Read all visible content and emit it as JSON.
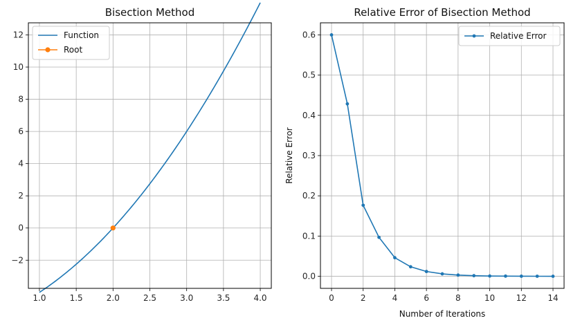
{
  "chart_data": [
    {
      "type": "line",
      "title": "Bisection Method",
      "xlabel": "",
      "ylabel": "",
      "xlim": [
        0.85,
        4.15
      ],
      "ylim": [
        -3.75,
        12.75
      ],
      "xticks": [
        1.0,
        1.5,
        2.0,
        2.5,
        3.0,
        3.5,
        4.0
      ],
      "xtick_labels": [
        "1.0",
        "1.5",
        "2.0",
        "2.5",
        "3.0",
        "3.5",
        "4.0"
      ],
      "yticks": [
        -2,
        0,
        2,
        4,
        6,
        8,
        10,
        12
      ],
      "ytick_labels": [
        "−2",
        "0",
        "2",
        "4",
        "6",
        "8",
        "10",
        "12"
      ],
      "grid": true,
      "legend": "top-left",
      "series": [
        {
          "name": "Function",
          "color": "#1f77b4",
          "function": "x^2 + x - 6",
          "x_range": [
            1.0,
            4.0
          ]
        },
        {
          "name": "Root",
          "color": "#ff7f0e",
          "marker": "circle",
          "x": [
            2.0
          ],
          "y": [
            0.0
          ]
        }
      ]
    },
    {
      "type": "line",
      "title": "Relative Error of Bisection Method",
      "xlabel": "Number of Iterations",
      "ylabel": "Relative Error",
      "xlim": [
        -0.7,
        14.7
      ],
      "ylim": [
        -0.03,
        0.63
      ],
      "xticks": [
        0,
        2,
        4,
        6,
        8,
        10,
        12,
        14
      ],
      "xtick_labels": [
        "0",
        "2",
        "4",
        "6",
        "8",
        "10",
        "12",
        "14"
      ],
      "yticks": [
        0.0,
        0.1,
        0.2,
        0.3,
        0.4,
        0.5,
        0.6
      ],
      "ytick_labels": [
        "0.0",
        "0.1",
        "0.2",
        "0.3",
        "0.4",
        "0.5",
        "0.6"
      ],
      "grid": true,
      "legend": "top-right",
      "series": [
        {
          "name": "Relative Error",
          "color": "#1f77b4",
          "marker": "circle",
          "x": [
            0,
            1,
            2,
            3,
            4,
            5,
            6,
            7,
            8,
            9,
            10,
            11,
            12,
            13,
            14
          ],
          "y": [
            0.6,
            0.4286,
            0.1765,
            0.0968,
            0.0462,
            0.0236,
            0.0119,
            0.006,
            0.003,
            0.0015,
            0.0007,
            0.0004,
            0.0002,
            0.0001,
            5e-05
          ]
        }
      ]
    }
  ]
}
